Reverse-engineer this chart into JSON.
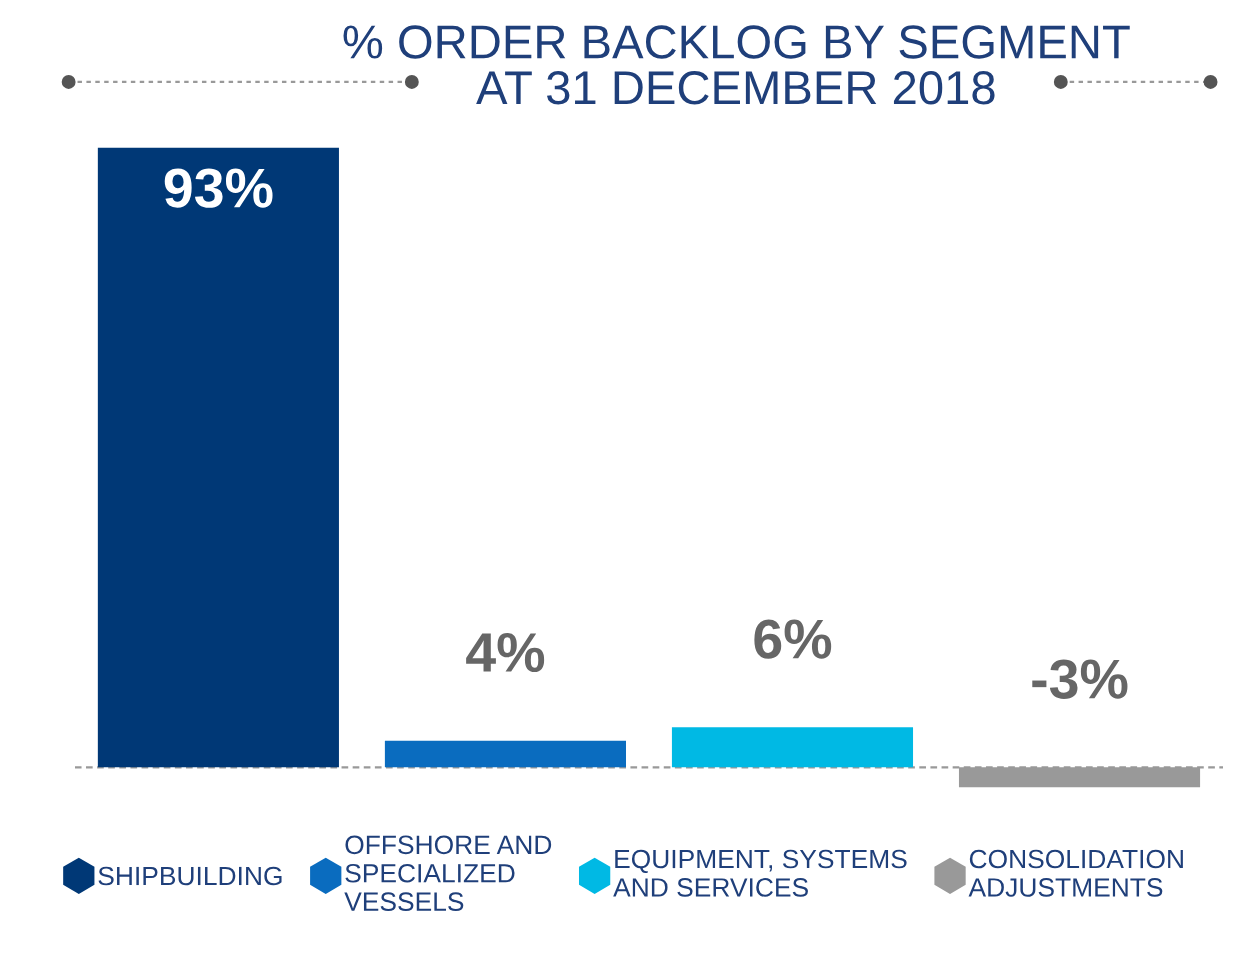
{
  "chart_data": {
    "type": "bar",
    "title": "% ORDER BACKLOG BY SEGMENT\nAT 31 DECEMBER 2018",
    "categories": [
      null
    ],
    "series": [
      {
        "name": "SHIPBUILDING",
        "color": "#003876",
        "values": [
          93
        ],
        "value_labels": [
          "93%"
        ]
      },
      {
        "name": "OFFSHORE AND\nSPECIALIZED\nVESSELS",
        "color": "#0a6cbf",
        "values": [
          4
        ],
        "value_labels": [
          "4%"
        ]
      },
      {
        "name": "EQUIPMENT, SYSTEMS\nAND SERVICES",
        "color": "#00b9e4",
        "values": [
          6
        ],
        "value_labels": [
          "6%"
        ]
      },
      {
        "name": "CONSOLIDATION\nADJUSTMENTS",
        "color": "#999999",
        "values": [
          -3
        ],
        "value_labels": [
          "-3%"
        ]
      }
    ],
    "ref_lines": [
      {
        "axis": "y",
        "value": 0,
        "color": "#999999",
        "line_style": "dashed"
      }
    ],
    "legend": "bottom"
  }
}
